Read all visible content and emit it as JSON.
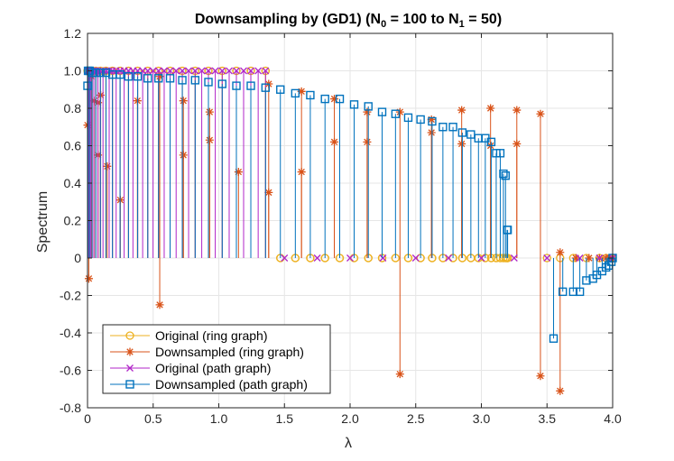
{
  "chart_data": {
    "type": "stem",
    "title_main": "Downsampling by (GD1) (N",
    "title_sub0": "0",
    "title_mid": " = 100 to N",
    "title_sub1": "1",
    "title_end": " = 50)",
    "xlabel": "λ",
    "ylabel": "Spectrum",
    "xlim": [
      0,
      4
    ],
    "ylim": [
      -0.8,
      1.2
    ],
    "xticks": [
      0,
      0.5,
      1.0,
      1.5,
      2.0,
      2.5,
      3.0,
      3.5,
      4.0
    ],
    "xtick_labels": [
      "0",
      "0.5",
      "1.0",
      "1.5",
      "2.0",
      "2.5",
      "3.0",
      "3.5",
      "4.0"
    ],
    "yticks": [
      -0.8,
      -0.6,
      -0.4,
      -0.2,
      0,
      0.2,
      0.4,
      0.6,
      0.8,
      1.0,
      1.2
    ],
    "ytick_labels": [
      "-0.8",
      "-0.6",
      "-0.4",
      "-0.2",
      "0",
      "0.2",
      "0.4",
      "0.6",
      "0.8",
      "1.0",
      "1.2"
    ],
    "grid": true,
    "legend_position": "bottom-left",
    "series": [
      {
        "name": "Original (ring graph)",
        "color": "#EDB120",
        "marker": "circle",
        "x": [
          0,
          0.004,
          0.004,
          0.016,
          0.016,
          0.035,
          0.035,
          0.063,
          0.063,
          0.098,
          0.098,
          0.14,
          0.14,
          0.19,
          0.19,
          0.248,
          0.248,
          0.312,
          0.312,
          0.382,
          0.382,
          0.459,
          0.459,
          0.541,
          0.541,
          0.629,
          0.629,
          0.722,
          0.722,
          0.82,
          0.82,
          0.921,
          0.921,
          1.026,
          1.026,
          1.134,
          1.134,
          1.244,
          1.244,
          1.356,
          1.356,
          1.469,
          1.469,
          1.583,
          1.583,
          1.697,
          1.697,
          1.809,
          1.809,
          1.921,
          1.921,
          2.031,
          2.031,
          2.139,
          2.139,
          2.244,
          2.244,
          2.346,
          2.346,
          2.443,
          2.443,
          2.537,
          2.537,
          2.625,
          2.625,
          2.707,
          2.707,
          2.784,
          2.784,
          2.855,
          2.855,
          2.92,
          2.92,
          2.978,
          2.978,
          3.03,
          3.03,
          3.075,
          3.075,
          3.113,
          3.113,
          3.144,
          3.144,
          3.168,
          3.168,
          3.184,
          3.184,
          3.196,
          3.196,
          3.2,
          3.2,
          3.5,
          3.6,
          3.7,
          3.8,
          3.9,
          3.95,
          3.98,
          3.995,
          4.0
        ],
        "values": [
          1,
          1,
          1,
          1,
          1,
          1,
          1,
          1,
          1,
          1,
          1,
          1,
          1,
          1,
          1,
          1,
          1,
          1,
          1,
          1,
          1,
          1,
          1,
          1,
          1,
          1,
          1,
          1,
          1,
          1,
          1,
          1,
          1,
          1,
          1,
          1,
          1,
          1,
          1,
          1,
          1,
          0,
          0,
          0,
          0,
          0,
          0,
          0,
          0,
          0,
          0,
          0,
          0,
          0,
          0,
          0,
          0,
          0,
          0,
          0,
          0,
          0,
          0,
          0,
          0,
          0,
          0,
          0,
          0,
          0,
          0,
          0,
          0,
          0,
          0,
          0,
          0,
          0,
          0,
          0,
          0,
          0,
          0,
          0,
          0,
          0,
          0,
          0,
          0,
          0,
          0,
          0,
          0,
          0,
          0,
          0,
          0,
          0,
          0,
          0
        ]
      },
      {
        "name": "Downsampled (ring graph)",
        "color": "#D95319",
        "marker": "asterisk",
        "x": [
          0,
          0.01,
          0.03,
          0.05,
          0.08,
          0.1,
          0.15,
          0.25,
          0.38,
          0.55,
          0.73,
          0.93,
          1.15,
          1.38,
          1.63,
          1.88,
          2.13,
          2.38,
          2.62,
          2.85,
          3.07,
          3.27,
          3.45,
          3.6,
          3.72,
          3.82,
          3.9,
          3.95,
          3.98,
          4.0
        ],
        "values": [
          0.71,
          -0.11,
          0.97,
          0.84,
          0.55,
          0.87,
          0.49,
          0.31,
          0.84,
          -0.25,
          0.55,
          0.78,
          0.46,
          0.35,
          0.46,
          0.62,
          0.62,
          -0.62,
          0.67,
          0.61,
          0.6,
          0.61,
          -0.63,
          -0.71,
          0,
          0,
          0,
          0,
          0,
          0
        ],
        "values2": [
          null,
          null,
          0.99,
          null,
          0.83,
          null,
          null,
          null,
          null,
          0.97,
          0.84,
          0.63,
          null,
          0.93,
          0.89,
          0.85,
          0.78,
          0.78,
          0.74,
          0.79,
          0.8,
          0.79,
          0.77,
          0.03,
          null,
          null,
          null,
          null,
          null,
          null
        ]
      },
      {
        "name": "Original (path graph)",
        "color": "#B026C8",
        "marker": "x",
        "x": [
          0,
          0.001,
          0.004,
          0.009,
          0.016,
          0.025,
          0.035,
          0.048,
          0.063,
          0.079,
          0.098,
          0.118,
          0.141,
          0.165,
          0.19,
          0.218,
          0.248,
          0.279,
          0.312,
          0.346,
          0.382,
          0.42,
          0.459,
          0.499,
          0.541,
          0.584,
          0.629,
          0.675,
          0.722,
          0.77,
          0.82,
          0.87,
          0.921,
          0.973,
          1.026,
          1.079,
          1.134,
          1.189,
          1.244,
          1.3,
          1.356,
          1.5,
          1.75,
          2.0,
          2.25,
          2.5,
          2.75,
          3.0,
          3.25,
          3.5,
          3.75,
          3.9,
          4.0
        ],
        "values": [
          1,
          1,
          1,
          1,
          1,
          1,
          1,
          1,
          1,
          1,
          1,
          1,
          1,
          1,
          1,
          1,
          1,
          1,
          1,
          1,
          1,
          1,
          1,
          1,
          1,
          1,
          1,
          1,
          1,
          1,
          1,
          1,
          1,
          1,
          1,
          1,
          1,
          1,
          1,
          1,
          1,
          0,
          0,
          0,
          0,
          0,
          0,
          0,
          0,
          0,
          0,
          0,
          0
        ]
      },
      {
        "name": "Downsampled (path graph)",
        "color": "#0072BD",
        "marker": "square",
        "x": [
          0,
          0.004,
          0.016,
          0.035,
          0.063,
          0.098,
          0.141,
          0.19,
          0.248,
          0.312,
          0.382,
          0.459,
          0.541,
          0.629,
          0.722,
          0.82,
          0.921,
          1.026,
          1.134,
          1.244,
          1.356,
          1.469,
          1.583,
          1.697,
          1.809,
          1.921,
          2.031,
          2.139,
          2.244,
          2.346,
          2.443,
          2.537,
          2.625,
          2.707,
          2.784,
          2.855,
          2.92,
          2.978,
          3.03,
          3.075,
          3.113,
          3.144,
          3.168,
          3.184,
          3.196,
          3.2,
          3.55,
          3.62,
          3.7,
          3.75,
          3.8,
          3.85,
          3.88,
          3.92,
          3.95,
          3.97,
          3.99,
          4.0
        ],
        "values": [
          0.92,
          1.0,
          1.0,
          0.99,
          0.99,
          0.99,
          0.99,
          0.98,
          0.98,
          0.97,
          0.97,
          0.96,
          0.96,
          0.96,
          0.95,
          0.95,
          0.94,
          0.93,
          0.92,
          0.92,
          0.91,
          0.9,
          0.88,
          0.87,
          0.85,
          0.85,
          0.82,
          0.81,
          0.78,
          0.77,
          0.75,
          0.74,
          0.73,
          0.7,
          0.7,
          0.67,
          0.66,
          0.64,
          0.64,
          0.62,
          0.56,
          0.56,
          0.45,
          0.44,
          0.15,
          0.15,
          -0.43,
          -0.18,
          -0.18,
          -0.18,
          -0.12,
          -0.11,
          -0.09,
          -0.07,
          -0.05,
          -0.04,
          -0.02,
          0
        ]
      }
    ]
  }
}
